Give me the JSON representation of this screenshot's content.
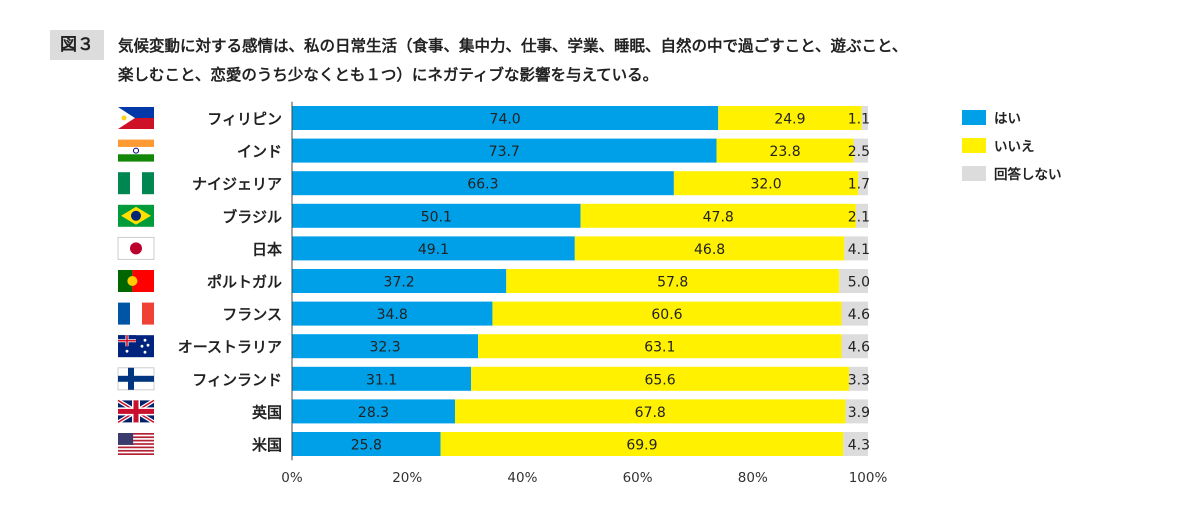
{
  "figure_label": "図３",
  "chart_data": {
    "type": "bar",
    "orientation": "horizontal",
    "stacked": true,
    "title_line1": "気候変動に対する感情は、私の日常生活（食事、集中力、仕事、学業、睡眠、自然の中で過ごすこと、遊ぶこと、",
    "title_line2": "楽しむこと、恋愛のうち少なくとも１つ）にネガティブな影響を与えている。",
    "categories": [
      "フィリピン",
      "インド",
      "ナイジェリア",
      "ブラジル",
      "日本",
      "ポルトガル",
      "フランス",
      "オーストラリア",
      "フィンランド",
      "英国",
      "米国"
    ],
    "flags": [
      "philippines",
      "india",
      "nigeria",
      "brazil",
      "japan",
      "portugal",
      "france",
      "australia",
      "finland",
      "uk",
      "usa"
    ],
    "series": [
      {
        "name": "はい",
        "color": "#00a0e9",
        "values": [
          74.0,
          73.7,
          66.3,
          50.1,
          49.1,
          37.2,
          34.8,
          32.3,
          31.1,
          28.3,
          25.8
        ]
      },
      {
        "name": "いいえ",
        "color": "#fff100",
        "values": [
          24.9,
          23.8,
          32.0,
          47.8,
          46.8,
          57.8,
          60.6,
          63.1,
          65.6,
          67.8,
          69.9
        ]
      },
      {
        "name": "回答しない",
        "color": "#dcdcdc",
        "values": [
          1.1,
          2.5,
          1.7,
          2.1,
          4.1,
          5.0,
          4.6,
          4.6,
          3.3,
          3.9,
          4.3
        ]
      }
    ],
    "xlim": [
      0,
      100
    ],
    "xticks": [
      "0%",
      "20%",
      "40%",
      "60%",
      "80%",
      "100%"
    ],
    "grid": false,
    "legend_position": "right"
  }
}
